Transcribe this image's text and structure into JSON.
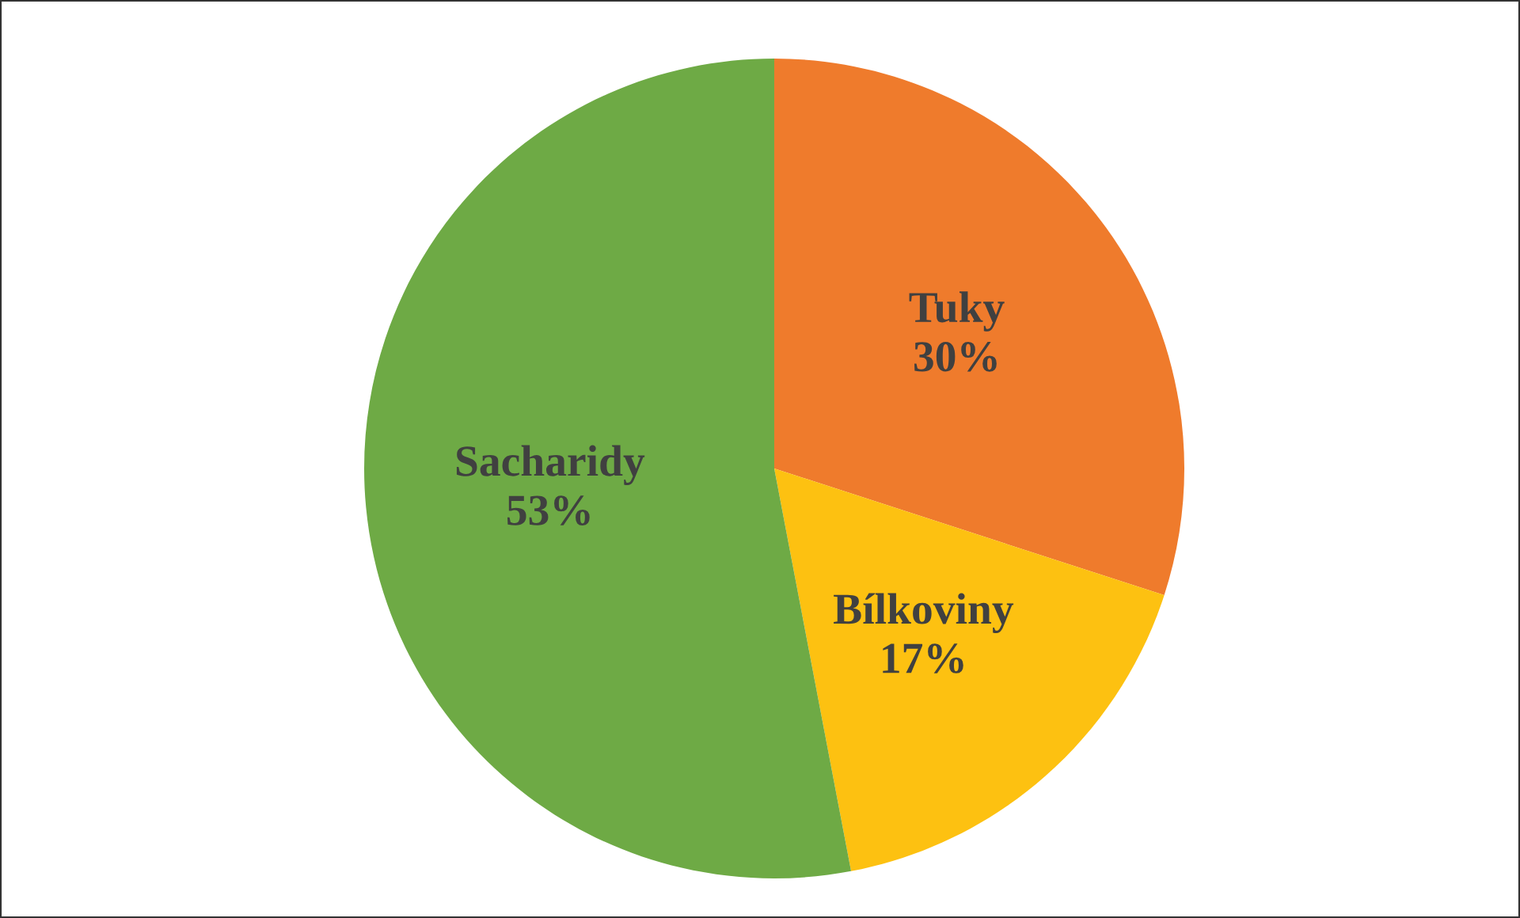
{
  "chart_data": {
    "type": "pie",
    "categories": [
      "Tuky",
      "Bílkoviny",
      "Sacharidy"
    ],
    "values": [
      30,
      17,
      53
    ],
    "colors": [
      "#ef7b2c",
      "#fdc111",
      "#6eaa45"
    ],
    "value_labels": [
      "30%",
      "17%",
      "53%"
    ],
    "legend": false
  }
}
